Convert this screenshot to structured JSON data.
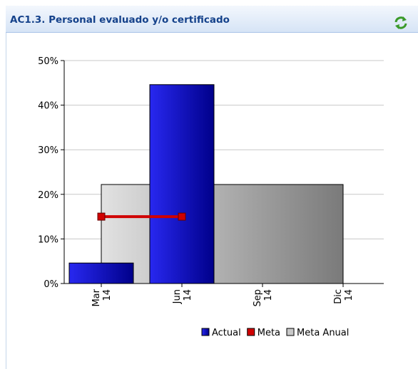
{
  "chart_data": {
    "type": "bar",
    "title": "AC1.3. Personal evaluado y/o certificado",
    "categories": [
      "Mar 14",
      "Jun 14",
      "Sep 14",
      "Dic 14"
    ],
    "series": [
      {
        "name": "Actual",
        "type": "bar",
        "color": "#0000c8",
        "values": [
          4.6,
          44.6,
          null,
          null
        ]
      },
      {
        "name": "Meta",
        "type": "line",
        "color": "#d00000",
        "values": [
          15,
          15,
          null,
          null
        ]
      },
      {
        "name": "Meta Anual",
        "type": "area",
        "color": "#b8b8b8",
        "values": [
          22.2,
          22.2,
          22.2,
          22.2
        ]
      }
    ],
    "ylim": [
      0,
      50
    ],
    "yticks": [
      {
        "value": 0,
        "label": "0%"
      },
      {
        "value": 10,
        "label": "10%"
      },
      {
        "value": 20,
        "label": "20%"
      },
      {
        "value": 30,
        "label": "30%"
      },
      {
        "value": 40,
        "label": "40%"
      },
      {
        "value": 50,
        "label": "50%"
      }
    ],
    "grid": true,
    "legend": "bottom-right"
  }
}
